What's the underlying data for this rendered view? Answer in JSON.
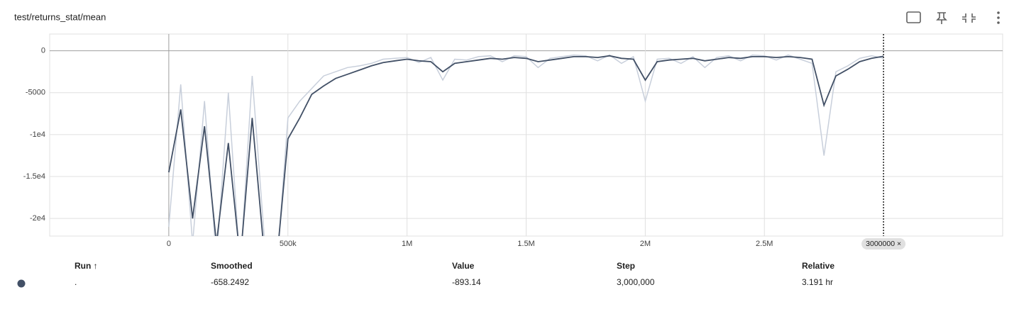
{
  "title": "test/returns_stat/mean",
  "chart_data": {
    "type": "line",
    "x": [
      0,
      50000,
      100000,
      150000,
      200000,
      250000,
      300000,
      350000,
      400000,
      450000,
      500000,
      550000,
      600000,
      650000,
      700000,
      750000,
      800000,
      850000,
      900000,
      950000,
      1000000,
      1050000,
      1100000,
      1150000,
      1200000,
      1250000,
      1300000,
      1350000,
      1400000,
      1450000,
      1500000,
      1550000,
      1600000,
      1650000,
      1700000,
      1750000,
      1800000,
      1850000,
      1900000,
      1950000,
      2000000,
      2050000,
      2100000,
      2150000,
      2200000,
      2250000,
      2300000,
      2350000,
      2400000,
      2450000,
      2500000,
      2550000,
      2600000,
      2650000,
      2700000,
      2750000,
      2800000,
      2850000,
      2900000,
      2950000,
      3000000
    ],
    "series": [
      {
        "name": "Value",
        "color": "#c8cfdb",
        "values": [
          -21000,
          -4000,
          -23000,
          -6000,
          -25000,
          -5000,
          -26000,
          -3000,
          -22000,
          -27000,
          -8000,
          -6000,
          -4500,
          -3000,
          -2500,
          -2000,
          -1800,
          -1500,
          -1000,
          -900,
          -800,
          -1400,
          -800,
          -3500,
          -1000,
          -1100,
          -700,
          -600,
          -1300,
          -600,
          -700,
          -2000,
          -900,
          -700,
          -500,
          -600,
          -1200,
          -500,
          -1500,
          -700,
          -6000,
          -1000,
          -900,
          -1500,
          -700,
          -2000,
          -800,
          -600,
          -1200,
          -500,
          -600,
          -1100,
          -500,
          -1000,
          -1500,
          -12500,
          -2500,
          -1800,
          -900,
          -600,
          -893.14
        ]
      },
      {
        "name": "Smoothed",
        "color": "#425066",
        "values": [
          -14500,
          -7000,
          -20000,
          -9000,
          -23000,
          -11000,
          -25000,
          -8000,
          -24000,
          -26000,
          -10500,
          -8000,
          -5200,
          -4200,
          -3300,
          -2800,
          -2300,
          -1800,
          -1400,
          -1200,
          -1000,
          -1200,
          -1300,
          -2500,
          -1500,
          -1300,
          -1100,
          -900,
          -1000,
          -800,
          -900,
          -1300,
          -1100,
          -900,
          -700,
          -700,
          -800,
          -600,
          -900,
          -1000,
          -3500,
          -1300,
          -1100,
          -1000,
          -900,
          -1200,
          -1000,
          -800,
          -900,
          -700,
          -700,
          -800,
          -700,
          -800,
          -1000,
          -6500,
          -3000,
          -2200,
          -1300,
          -900,
          -658.2492
        ]
      }
    ],
    "xlim": [
      -500000,
      3500000
    ],
    "ylim": [
      -22100,
      2000
    ],
    "xticks": [
      0,
      {
        "value": 500000,
        "label": "500k"
      },
      {
        "value": 1000000,
        "label": "1M"
      },
      {
        "value": 1500000,
        "label": "1.5M"
      },
      {
        "value": 2000000,
        "label": "2M"
      },
      {
        "value": 2500000,
        "label": "2.5M"
      }
    ],
    "yticks": [
      0,
      -5000,
      {
        "value": -10000,
        "label": "-1e4"
      },
      {
        "value": -15000,
        "label": "-1.5e4"
      },
      {
        "value": -20000,
        "label": "-2e4"
      }
    ],
    "grid": true,
    "cursor": {
      "value": 3000000,
      "label": "3000000 ×"
    }
  },
  "table": {
    "headers": [
      "Run ↑",
      "Smoothed",
      "Value",
      "Step",
      "Relative"
    ],
    "rows": [
      [
        ".",
        "-658.2492",
        "-893.14",
        "3,000,000",
        "3.191 hr"
      ]
    ]
  }
}
